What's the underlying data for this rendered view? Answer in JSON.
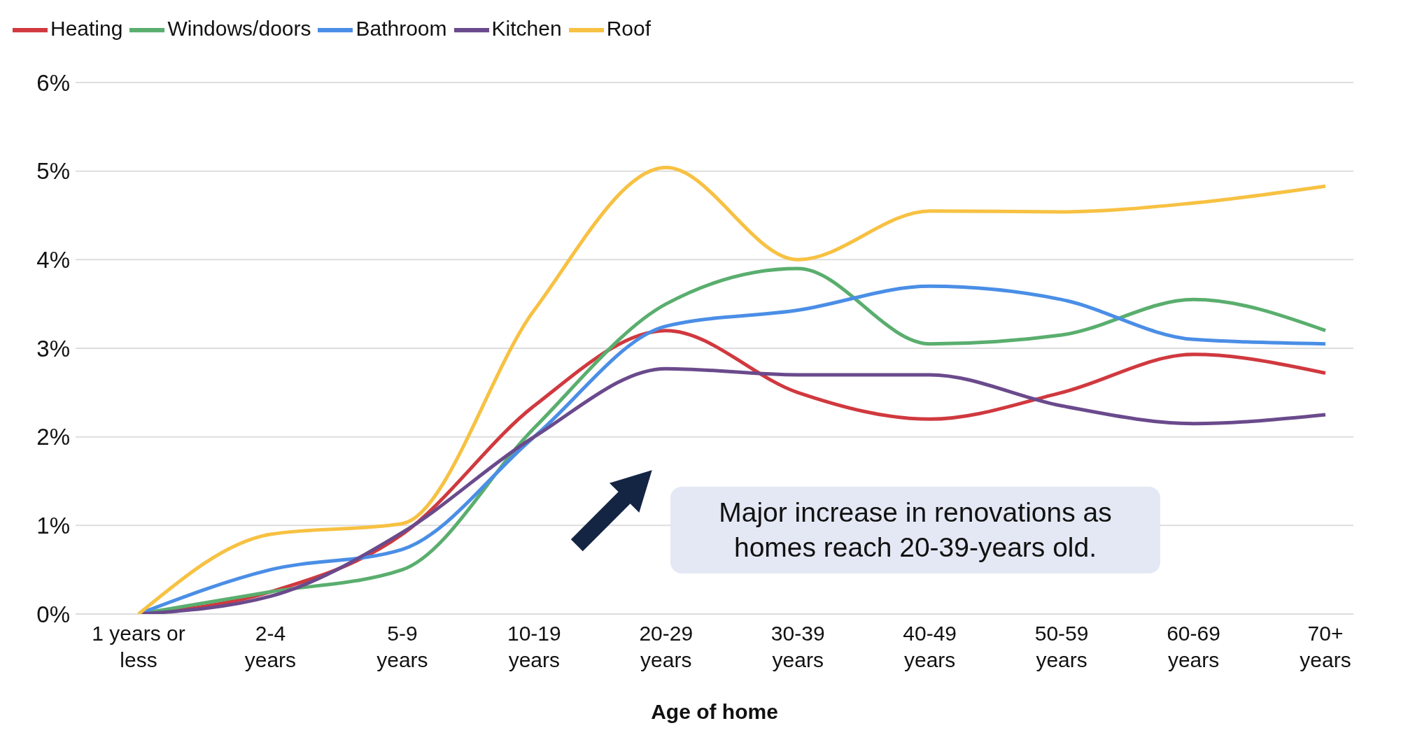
{
  "chart_data": {
    "type": "line",
    "xlabel": "Age of home",
    "categories": [
      "1 years or less",
      "2-4 years",
      "5-9 years",
      "10-19 years",
      "20-29 years",
      "30-39 years",
      "40-49 years",
      "50-59 years",
      "60-69 years",
      "70+ years"
    ],
    "series": [
      {
        "name": "Heating",
        "color": "#d0393f",
        "values": [
          0,
          0.25,
          0.9,
          2.35,
          3.2,
          2.5,
          2.2,
          2.5,
          2.93,
          2.72
        ]
      },
      {
        "name": "Windows/doors",
        "color": "#5aae6e",
        "values": [
          0,
          0.25,
          0.5,
          2.1,
          3.5,
          3.9,
          3.05,
          3.15,
          3.55,
          3.2
        ]
      },
      {
        "name": "Bathroom",
        "color": "#4a8ee6",
        "values": [
          0,
          0.5,
          0.73,
          2.0,
          3.25,
          3.43,
          3.7,
          3.55,
          3.1,
          3.05
        ]
      },
      {
        "name": "Kitchen",
        "color": "#6a4a8c",
        "values": [
          0,
          0.2,
          0.92,
          2.0,
          2.77,
          2.7,
          2.7,
          2.35,
          2.15,
          2.25
        ]
      },
      {
        "name": "Roof",
        "color": "#f7c142",
        "values": [
          0,
          0.9,
          1.02,
          3.43,
          5.04,
          4.0,
          4.55,
          4.54,
          4.64,
          4.83
        ]
      }
    ],
    "ylim": [
      0,
      6
    ],
    "yticks": [
      {
        "value": 0,
        "label": "0%"
      },
      {
        "value": 1,
        "label": "1%"
      },
      {
        "value": 2,
        "label": "2%"
      },
      {
        "value": 3,
        "label": "3%"
      },
      {
        "value": 4,
        "label": "4%"
      },
      {
        "value": 5,
        "label": "5%"
      },
      {
        "value": 6,
        "label": "6%"
      }
    ],
    "grid": "y",
    "legend": "top left",
    "marker": "none",
    "line_style": "solid",
    "annotations": [
      "Major increase in renovations as homes reach 20-39-years old."
    ]
  }
}
